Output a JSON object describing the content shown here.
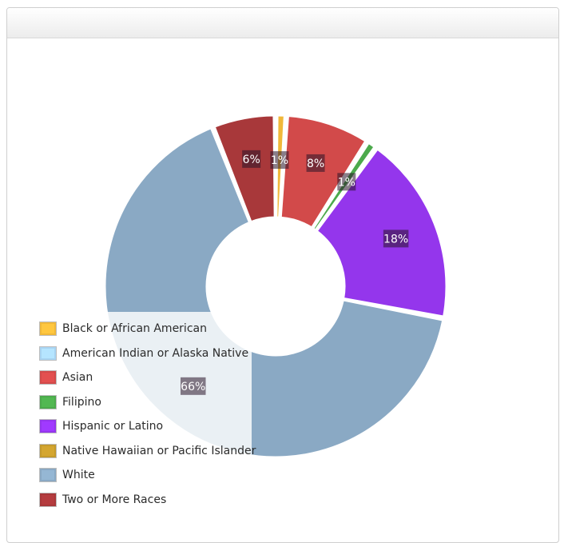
{
  "chart_data": {
    "type": "pie",
    "donut": true,
    "legend_position": "bottom-left",
    "slices": [
      {
        "name": "Black or African American",
        "value": 1,
        "label": "1%",
        "color": "#f0b83a"
      },
      {
        "name": "American Indian or Alaska Native",
        "value": 0,
        "label": "",
        "color": "#a8d4f2"
      },
      {
        "name": "Asian",
        "value": 8,
        "label": "8%",
        "color": "#d24a4a"
      },
      {
        "name": "Filipino",
        "value": 1,
        "label": "1%",
        "color": "#4caa4c"
      },
      {
        "name": "Hispanic or Latino",
        "value": 18,
        "label": "18%",
        "color": "#9436ec"
      },
      {
        "name": "Native Hawaiian or Pacific Islander",
        "value": 0,
        "label": "",
        "color": "#c49a2c"
      },
      {
        "name": "White",
        "value": 66,
        "label": "66%",
        "color": "#8aa9c4"
      },
      {
        "name": "Two or More Races",
        "value": 6,
        "label": "6%",
        "color": "#a8383a"
      }
    ]
  }
}
